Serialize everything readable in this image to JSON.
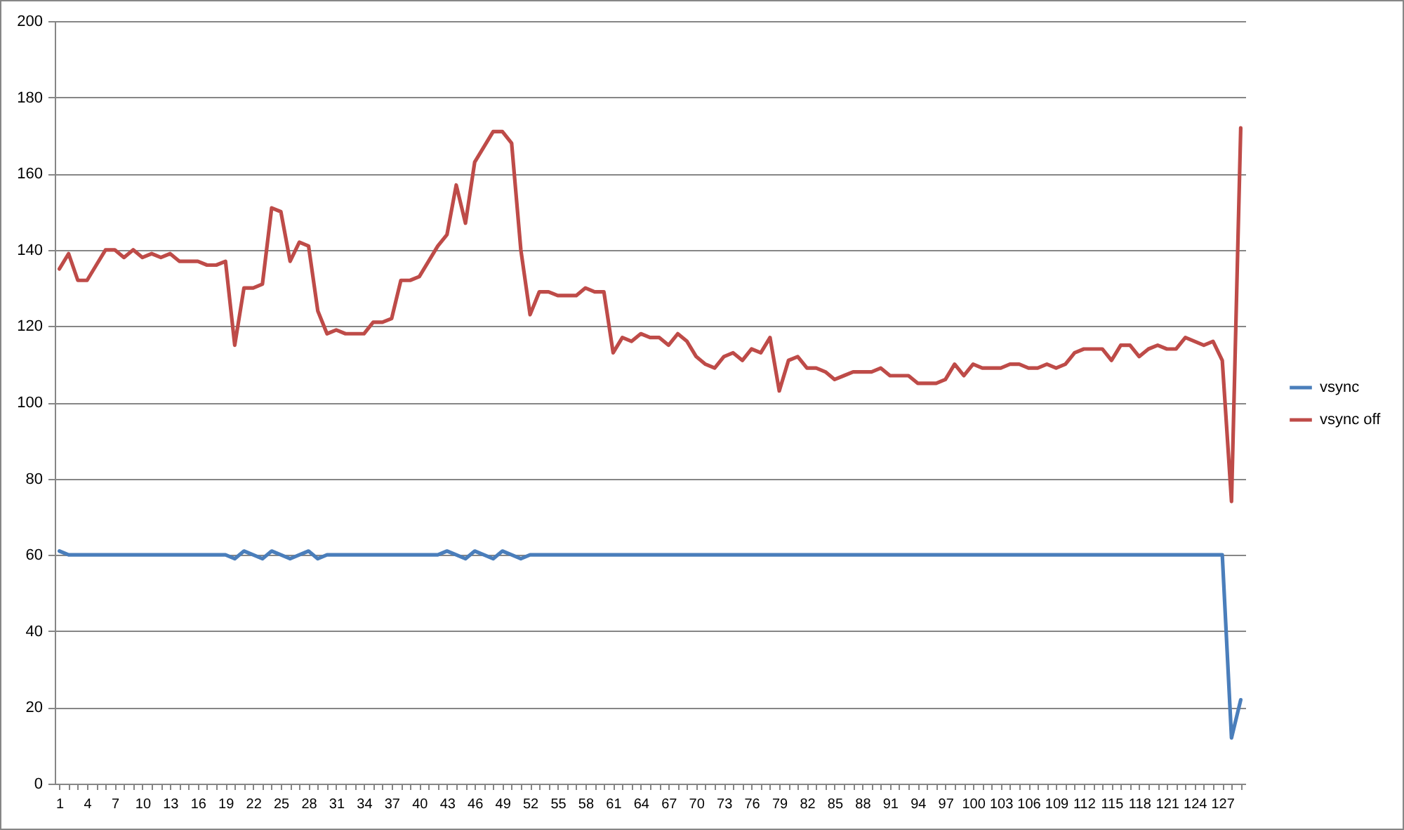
{
  "chart_data": {
    "type": "line",
    "categories": [
      "1",
      null,
      null,
      "4",
      null,
      null,
      "7",
      null,
      null,
      "10",
      null,
      null,
      "13",
      null,
      null,
      "16",
      null,
      null,
      "19",
      null,
      null,
      "22",
      null,
      null,
      "25",
      null,
      null,
      "28",
      null,
      null,
      "31",
      null,
      null,
      "34",
      null,
      null,
      "37",
      null,
      null,
      "40",
      null,
      null,
      "43",
      null,
      null,
      "46",
      null,
      null,
      "49",
      null,
      null,
      "52",
      null,
      null,
      "55",
      null,
      null,
      "58",
      null,
      null,
      "61",
      null,
      null,
      "64",
      null,
      null,
      "67",
      null,
      null,
      "70",
      null,
      null,
      "73",
      null,
      null,
      "76",
      null,
      null,
      "79",
      null,
      null,
      "82",
      null,
      null,
      "85",
      null,
      null,
      "88",
      null,
      null,
      "91",
      null,
      null,
      "94",
      null,
      null,
      "97",
      null,
      null,
      "100",
      null,
      null,
      "103",
      null,
      null,
      "106",
      null,
      null,
      "109",
      null,
      null,
      "112",
      null,
      null,
      "115",
      null,
      null,
      "118",
      null,
      null,
      "121",
      null,
      null,
      "124",
      null,
      null,
      "127",
      null,
      null
    ],
    "series": [
      {
        "name": "vsync",
        "color": "#4a7ebb",
        "values": [
          61,
          60,
          60,
          60,
          60,
          60,
          60,
          60,
          60,
          60,
          60,
          60,
          60,
          60,
          60,
          60,
          60,
          60,
          60,
          59,
          61,
          60,
          59,
          61,
          60,
          59,
          60,
          61,
          59,
          60,
          60,
          60,
          60,
          60,
          60,
          60,
          60,
          60,
          60,
          60,
          60,
          60,
          61,
          60,
          59,
          61,
          60,
          59,
          61,
          60,
          59,
          60,
          60,
          60,
          60,
          60,
          60,
          60,
          60,
          60,
          60,
          60,
          60,
          60,
          60,
          60,
          60,
          60,
          60,
          60,
          60,
          60,
          60,
          60,
          60,
          60,
          60,
          60,
          60,
          60,
          60,
          60,
          60,
          60,
          60,
          60,
          60,
          60,
          60,
          60,
          60,
          60,
          60,
          60,
          60,
          60,
          60,
          60,
          60,
          60,
          60,
          60,
          60,
          60,
          60,
          60,
          60,
          60,
          60,
          60,
          60,
          60,
          60,
          60,
          60,
          60,
          60,
          60,
          60,
          60,
          60,
          60,
          60,
          60,
          60,
          60,
          60,
          12,
          22
        ]
      },
      {
        "name": "vsync off",
        "color": "#be4b48",
        "values": [
          135,
          139,
          132,
          132,
          136,
          140,
          140,
          138,
          140,
          138,
          139,
          138,
          139,
          137,
          137,
          137,
          136,
          136,
          137,
          115,
          130,
          130,
          131,
          151,
          150,
          137,
          142,
          141,
          124,
          118,
          119,
          118,
          118,
          118,
          121,
          121,
          122,
          132,
          132,
          133,
          137,
          141,
          144,
          157,
          147,
          163,
          167,
          171,
          171,
          168,
          140,
          123,
          129,
          129,
          128,
          128,
          128,
          130,
          129,
          129,
          113,
          117,
          116,
          118,
          117,
          117,
          115,
          118,
          116,
          112,
          110,
          109,
          112,
          113,
          111,
          114,
          113,
          117,
          103,
          111,
          112,
          109,
          109,
          108,
          106,
          107,
          108,
          108,
          108,
          109,
          107,
          107,
          107,
          105,
          105,
          105,
          106,
          110,
          107,
          110,
          109,
          109,
          109,
          110,
          110,
          109,
          109,
          110,
          109,
          110,
          113,
          114,
          114,
          114,
          111,
          115,
          115,
          112,
          114,
          115,
          114,
          114,
          117,
          116,
          115,
          116,
          111,
          74,
          172
        ]
      }
    ],
    "ylim": [
      0,
      200
    ],
    "yticks": [
      0,
      20,
      40,
      60,
      80,
      100,
      120,
      140,
      160,
      180,
      200
    ],
    "grid": "y",
    "legend": "right"
  }
}
